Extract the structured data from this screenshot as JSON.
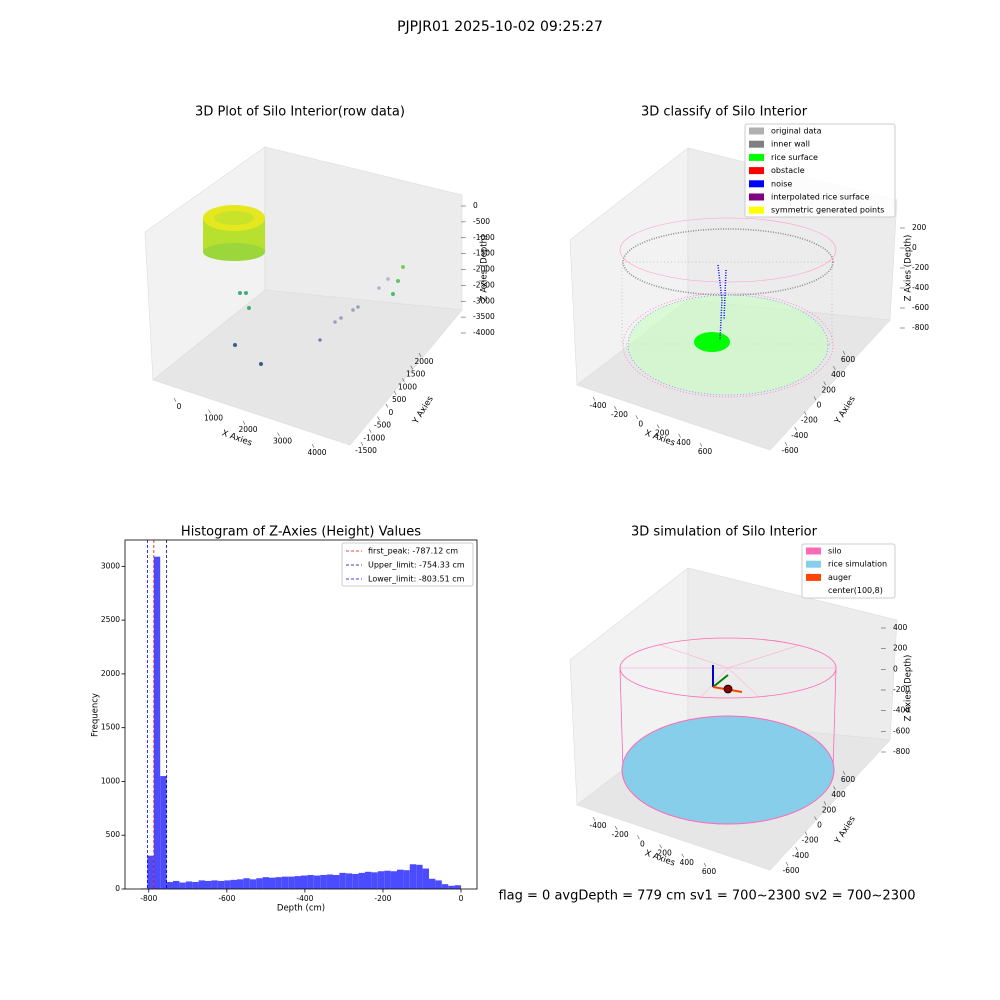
{
  "title": "PJPJR01 2025-10-02 09:25:27",
  "footer": "flag = 0     avgDepth = 779 cm  sv1 = 700~2300  sv2 = 700~2300",
  "chart_data": [
    {
      "type": "scatter3d",
      "title": "3D Plot of Silo Interior(row data)",
      "xlabel": "X Axies",
      "ylabel": "Y Axies",
      "zlabel": "Z Axies (Depth)",
      "xticks": [
        0,
        1000,
        2000,
        3000,
        4000
      ],
      "yticks": [
        -1500,
        -1000,
        -500,
        0,
        500,
        1000,
        1500,
        2000
      ],
      "zticks": [
        0,
        -500,
        -1000,
        -1500,
        -2000,
        -2500,
        -3000,
        -3500,
        -4000
      ]
    },
    {
      "type": "scatter3d",
      "title": "3D classify of Silo Interior",
      "xlabel": "X Axies",
      "ylabel": "Y Axies",
      "zlabel": "Z Axies (Depth)",
      "xticks": [
        -400,
        -200,
        0,
        200,
        400,
        600
      ],
      "yticks": [
        -600,
        -400,
        -200,
        0,
        200,
        400,
        600
      ],
      "zticks": [
        200,
        0,
        -200,
        -400,
        -600,
        -800
      ],
      "legend": [
        {
          "name": "original data",
          "color": "#b0b0b0"
        },
        {
          "name": "inner wall",
          "color": "#808080"
        },
        {
          "name": "rice surface",
          "color": "#00ff00"
        },
        {
          "name": "obstacle",
          "color": "#ff0000"
        },
        {
          "name": "noise",
          "color": "#0000ff"
        },
        {
          "name": "interpolated rice surface",
          "color": "#800080"
        },
        {
          "name": "symmetric generated points",
          "color": "#ffff00"
        }
      ]
    },
    {
      "type": "histogram",
      "title": "Histogram of Z-Axies (Height) Values",
      "xlabel": "Depth (cm)",
      "ylabel": "Frequency",
      "color": "#4b4bff",
      "bins": [
        -820,
        -803.6,
        -787.2,
        -770.8,
        -754.4,
        -738,
        -721.6,
        -705.2,
        -688.8,
        -672.4,
        -656,
        -639.6,
        -623.2,
        -606.8,
        -590.4,
        -574,
        -557.6,
        -541.2,
        -524.8,
        -508.4,
        -492,
        -475.6,
        -459.2,
        -442.8,
        -426.4,
        -410,
        -393.6,
        -377.2,
        -360.8,
        -344.4,
        -328,
        -311.6,
        -295.2,
        -278.8,
        -262.4,
        -246,
        -229.6,
        -213.2,
        -196.8,
        -180.4,
        -164,
        -147.6,
        -131.2,
        -114.8,
        -98.4,
        -82,
        -65.6,
        -49.2,
        -32.8,
        -16.4,
        0
      ],
      "values": [
        5,
        310,
        3090,
        1050,
        65,
        75,
        60,
        70,
        65,
        80,
        75,
        80,
        75,
        80,
        85,
        90,
        100,
        90,
        100,
        110,
        105,
        110,
        115,
        115,
        120,
        125,
        130,
        125,
        130,
        135,
        130,
        150,
        145,
        140,
        150,
        160,
        155,
        165,
        170,
        165,
        180,
        175,
        230,
        225,
        190,
        95,
        80,
        45,
        30,
        35
      ],
      "xlim": [
        -861,
        41
      ],
      "ylim": [
        0,
        3245
      ],
      "xticks": [
        -800,
        -600,
        -400,
        -200,
        0
      ],
      "yticks": [
        0,
        500,
        1000,
        1500,
        2000,
        2500,
        3000
      ],
      "lines": [
        {
          "value": -787.12,
          "label": "first_peak: -787.12 cm",
          "color": "#ff0000"
        },
        {
          "value": -754.33,
          "label": "Upper_limit: -754.33 cm",
          "color": "#00008b"
        },
        {
          "value": -803.51,
          "label": "Lower_limit: -803.51 cm",
          "color": "#0000ff"
        }
      ],
      "legend_loc": "upper right"
    },
    {
      "type": "surface3d",
      "title": "3D simulation of Silo Interior",
      "xlabel": "X Axies",
      "ylabel": "Y Axies",
      "zlabel": "Z Axies (Depth)",
      "xticks": [
        -400,
        -200,
        0,
        200,
        400,
        600
      ],
      "yticks": [
        -600,
        -400,
        -200,
        0,
        200,
        400,
        600
      ],
      "zticks": [
        400,
        200,
        0,
        -200,
        -400,
        -600,
        -800
      ],
      "legend": [
        {
          "name": "silo",
          "color": "#ff69b4"
        },
        {
          "name": "rice simulation",
          "color": "#87ceeb"
        },
        {
          "name": "auger",
          "color": "#ff4500"
        },
        {
          "name": "center(100,8)",
          "color": "#ffffff"
        }
      ]
    }
  ]
}
